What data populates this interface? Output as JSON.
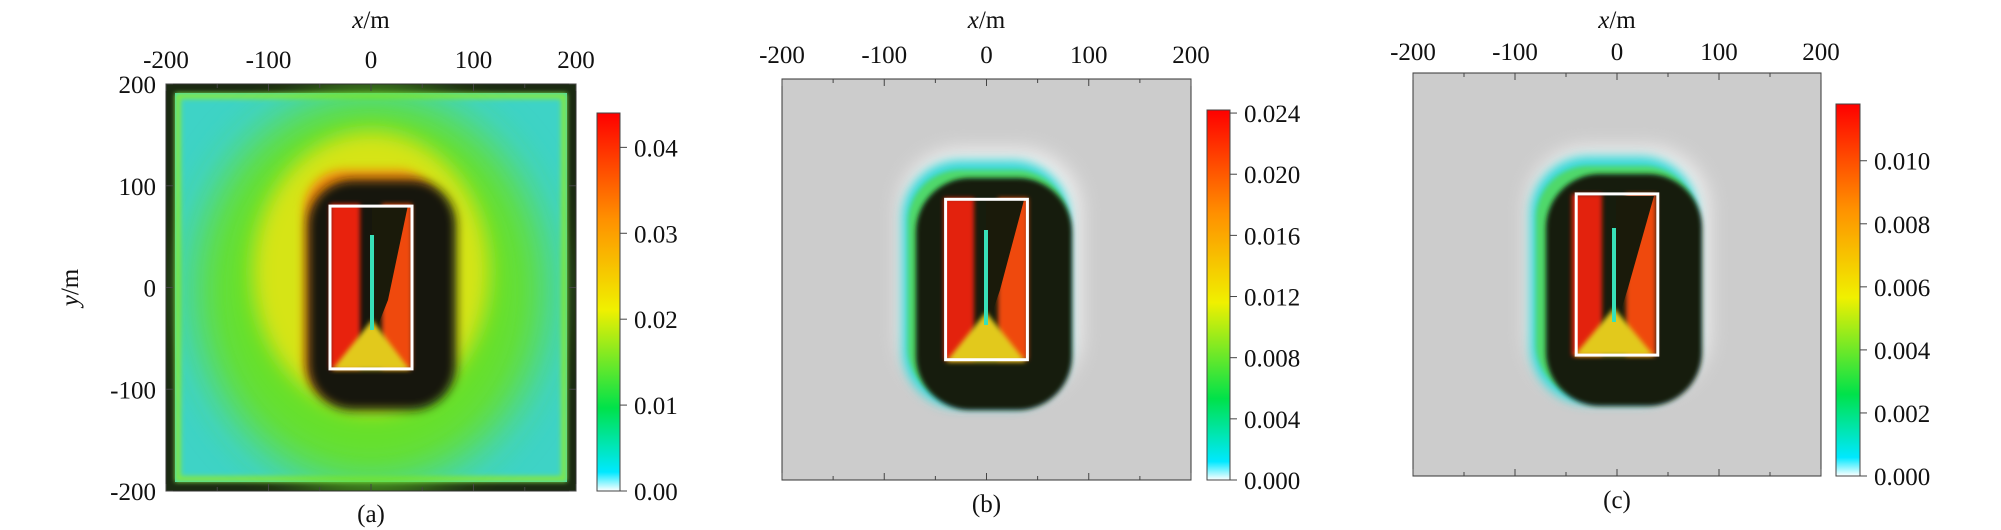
{
  "chart_data": [
    {
      "type": "heatmap",
      "caption": "(a)",
      "xlabel": "x/m",
      "ylabel": "y/m",
      "x_ticks": [
        -200,
        -100,
        0,
        100,
        200
      ],
      "y_ticks": [
        200,
        100,
        0,
        -100,
        -200
      ],
      "xlim": [
        -200,
        200
      ],
      "ylim": [
        -200,
        200
      ],
      "colorbar": {
        "min": 0.0,
        "max": 0.044,
        "ticks": [
          "0.04",
          "0.03",
          "0.02",
          "0.01",
          "0.00"
        ],
        "tick_values": [
          0.04,
          0.03,
          0.02,
          0.01,
          0.0
        ]
      },
      "rectangle": {
        "x": [
          -40,
          40
        ],
        "y": [
          -80,
          80
        ],
        "color": "#ffffff"
      },
      "background": "#3fd2c8"
    },
    {
      "type": "heatmap",
      "caption": "(b)",
      "xlabel": "x/m",
      "ylabel": "",
      "x_ticks": [
        -200,
        -100,
        0,
        100,
        200
      ],
      "y_ticks": [],
      "xlim": [
        -200,
        200
      ],
      "ylim": [
        -200,
        200
      ],
      "colorbar": {
        "min": 0.0,
        "max": 0.0242,
        "ticks": [
          "0.024",
          "0.020",
          "0.016",
          "0.012",
          "0.008",
          "0.004",
          "0.000"
        ],
        "tick_values": [
          0.024,
          0.02,
          0.016,
          0.012,
          0.008,
          0.004,
          0.0
        ]
      },
      "rectangle": {
        "x": [
          -40,
          40
        ],
        "y": [
          -80,
          80
        ],
        "color": "#ffffff"
      },
      "background": "#cbcbcb"
    },
    {
      "type": "heatmap",
      "caption": "(c)",
      "xlabel": "x/m",
      "ylabel": "",
      "x_ticks": [
        -200,
        -100,
        0,
        100,
        200
      ],
      "y_ticks": [],
      "xlim": [
        -200,
        200
      ],
      "ylim": [
        -200,
        200
      ],
      "colorbar": {
        "min": 0.0,
        "max": 0.0118,
        "ticks": [
          "0.010",
          "0.008",
          "0.006",
          "0.004",
          "0.002",
          "0.000"
        ],
        "tick_values": [
          0.01,
          0.008,
          0.006,
          0.004,
          0.002,
          0.0
        ]
      },
      "rectangle": {
        "x": [
          -40,
          40
        ],
        "y": [
          -80,
          80
        ],
        "color": "#ffffff"
      },
      "background": "#cbcbcb"
    }
  ]
}
